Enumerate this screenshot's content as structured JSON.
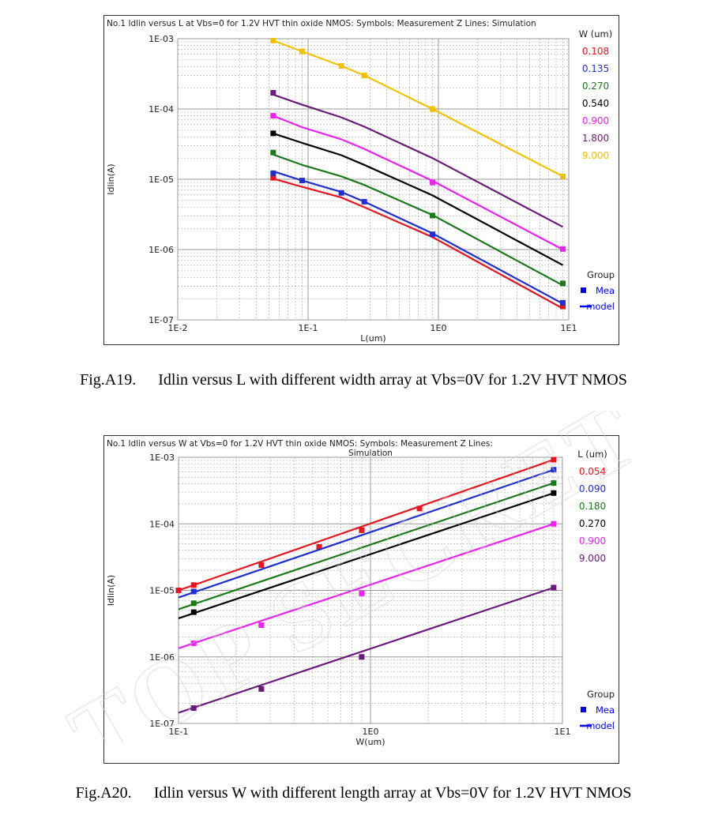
{
  "figures": [
    {
      "caption_number": "Fig.A19.",
      "caption_text": "Idlin versus L with different width array at Vbs=0V for 1.2V HVT NMOS"
    },
    {
      "caption_number": "Fig.A20.",
      "caption_text": "Idlin versus W with different length array at Vbs=0V for 1.2V HVT NMOS"
    }
  ],
  "watermark": "TOP SECRET",
  "chart_data": [
    {
      "type": "line",
      "title": "No.1 Idlin versus L at Vbs=0 for 1.2V HVT thin oxide NMOS: Symbols: Measurement Z Lines: Simulation",
      "xlabel": "L(um)",
      "ylabel": "Idlin(A)",
      "x_scale": "log",
      "y_scale": "log",
      "xlim": [
        0.01,
        10
      ],
      "ylim": [
        1e-07,
        0.001
      ],
      "x_ticks": [
        {
          "v": 0.01,
          "label": "1E-2"
        },
        {
          "v": 0.1,
          "label": "1E-1"
        },
        {
          "v": 1,
          "label": "1E0"
        },
        {
          "v": 10,
          "label": "1E1"
        }
      ],
      "y_ticks": [
        {
          "v": 0.001,
          "label": "1E-03"
        },
        {
          "v": 0.0001,
          "label": "1E-04"
        },
        {
          "v": 1e-05,
          "label": "1E-05"
        },
        {
          "v": 1e-06,
          "label": "1E-06"
        },
        {
          "v": 1e-07,
          "label": "1E-07"
        }
      ],
      "grid": true,
      "legend_title": "W (um)",
      "legend_placement": "right",
      "group_title": "Group",
      "group_items": [
        {
          "label": "Mea",
          "kind": "marker",
          "color": "#0000ff"
        },
        {
          "label": "model",
          "kind": "line",
          "color": "#0000ff"
        }
      ],
      "series": [
        {
          "name": "0.108",
          "color": "#e8141e",
          "points": [
            [
              0.054,
              1.02e-05
            ],
            [
              0.09,
              7.8e-06
            ],
            [
              0.18,
              5.5e-06
            ],
            [
              0.27,
              4e-06
            ],
            [
              0.9,
              1.5e-06
            ],
            [
              9,
              1.45e-07
            ]
          ],
          "markers": [
            [
              0.054,
              1.05e-05
            ],
            [
              9,
              1.55e-07
            ]
          ]
        },
        {
          "name": "0.135",
          "color": "#2030d0",
          "points": [
            [
              0.054,
              1.3e-05
            ],
            [
              0.09,
              9.6e-06
            ],
            [
              0.18,
              6.6e-06
            ],
            [
              0.27,
              4.8e-06
            ],
            [
              0.9,
              1.7e-06
            ],
            [
              9,
              1.7e-07
            ]
          ],
          "markers": [
            [
              0.054,
              1.22e-05
            ],
            [
              0.09,
              9.6e-06
            ],
            [
              0.18,
              6.4e-06
            ],
            [
              0.27,
              4.8e-06
            ],
            [
              0.9,
              1.65e-06
            ],
            [
              9,
              1.75e-07
            ]
          ]
        },
        {
          "name": "0.270",
          "color": "#1a7a1a",
          "points": [
            [
              0.054,
              2.25e-05
            ],
            [
              0.09,
              1.6e-05
            ],
            [
              0.18,
              1.1e-05
            ],
            [
              0.27,
              8.3e-06
            ],
            [
              0.9,
              3.1e-06
            ],
            [
              9,
              3.1e-07
            ]
          ],
          "markers": [
            [
              0.054,
              2.4e-05
            ],
            [
              0.9,
              3.05e-06
            ],
            [
              9,
              3.3e-07
            ]
          ]
        },
        {
          "name": "0.540",
          "color": "#000000",
          "points": [
            [
              0.054,
              4.5e-05
            ],
            [
              0.09,
              3.3e-05
            ],
            [
              0.18,
              2.2e-05
            ],
            [
              0.27,
              1.6e-05
            ],
            [
              0.9,
              5.9e-06
            ],
            [
              9,
              6e-07
            ]
          ],
          "markers": [
            [
              0.054,
              4.5e-05
            ]
          ]
        },
        {
          "name": "0.900",
          "color": "#ee22ee",
          "points": [
            [
              0.054,
              8e-05
            ],
            [
              0.09,
              5.5e-05
            ],
            [
              0.18,
              3.7e-05
            ],
            [
              0.27,
              2.7e-05
            ],
            [
              0.9,
              9.5e-06
            ],
            [
              9,
              1e-06
            ]
          ],
          "markers": [
            [
              0.054,
              8e-05
            ],
            [
              0.9,
              9e-06
            ],
            [
              9,
              1.02e-06
            ]
          ]
        },
        {
          "name": "1.800",
          "color": "#6a1a7a",
          "points": [
            [
              0.054,
              0.00016
            ],
            [
              0.09,
              0.000115
            ],
            [
              0.18,
              7.6e-05
            ],
            [
              0.27,
              5.6e-05
            ],
            [
              0.9,
              2e-05
            ],
            [
              9,
              2.1e-06
            ]
          ],
          "markers": [
            [
              0.054,
              0.00017
            ]
          ]
        },
        {
          "name": "9.000",
          "color": "#f2c200",
          "points": [
            [
              0.054,
              0.00094
            ],
            [
              0.09,
              0.00066
            ],
            [
              0.18,
              0.00041
            ],
            [
              0.27,
              0.0003
            ],
            [
              0.9,
              0.0001
            ],
            [
              9,
              1.1e-05
            ]
          ],
          "markers": [
            [
              0.054,
              0.00094
            ],
            [
              0.09,
              0.00066
            ],
            [
              0.18,
              0.00041
            ],
            [
              0.27,
              0.0003
            ],
            [
              0.9,
              0.0001
            ],
            [
              9,
              1.1e-05
            ]
          ]
        }
      ]
    },
    {
      "type": "line",
      "title": "No.1     Idlin versus W at Vbs=0 for 1.2V HVT thin oxide NMOS: Symbols: Measurement Z Lines:",
      "title_line2": "Simulation",
      "xlabel": "W(um)",
      "ylabel": "Idlin(A)",
      "x_scale": "log",
      "y_scale": "log",
      "xlim": [
        0.1,
        10
      ],
      "ylim": [
        1e-07,
        0.001
      ],
      "x_ticks": [
        {
          "v": 0.1,
          "label": "1E-1"
        },
        {
          "v": 1,
          "label": "1E0"
        },
        {
          "v": 10,
          "label": "1E1"
        }
      ],
      "y_ticks": [
        {
          "v": 0.001,
          "label": "1E-03"
        },
        {
          "v": 0.0001,
          "label": "1E-04"
        },
        {
          "v": 1e-05,
          "label": "1E-05"
        },
        {
          "v": 1e-06,
          "label": "1E-06"
        },
        {
          "v": 1e-07,
          "label": "1E-07"
        }
      ],
      "grid": true,
      "legend_title": "L (um)",
      "legend_placement": "right",
      "group_title": "Group",
      "group_items": [
        {
          "label": "Mea",
          "kind": "marker",
          "color": "#0000ff"
        },
        {
          "label": "model",
          "kind": "line",
          "color": "#0000ff"
        }
      ],
      "series": [
        {
          "name": "0.054",
          "color": "#e8141e",
          "points": [
            [
              0.1,
              1e-05
            ],
            [
              9,
              0.00092
            ]
          ],
          "markers": [
            [
              0.1,
              1e-05
            ],
            [
              0.12,
              1.2e-05
            ],
            [
              0.27,
              2.4e-05
            ],
            [
              0.54,
              4.5e-05
            ],
            [
              0.9,
              8e-05
            ],
            [
              1.8,
              0.00017
            ],
            [
              9,
              0.00092
            ]
          ]
        },
        {
          "name": "0.090",
          "color": "#2030d0",
          "points": [
            [
              0.1,
              7.8e-06
            ],
            [
              9,
              0.00065
            ]
          ],
          "markers": [
            [
              0.12,
              9.6e-06
            ],
            [
              9,
              0.00065
            ]
          ]
        },
        {
          "name": "0.180",
          "color": "#1a7a1a",
          "points": [
            [
              0.1,
              5.2e-06
            ],
            [
              9,
              0.00041
            ]
          ],
          "markers": [
            [
              0.12,
              6.4e-06
            ],
            [
              9,
              0.00041
            ]
          ]
        },
        {
          "name": "0.270",
          "color": "#000000",
          "points": [
            [
              0.1,
              3.8e-06
            ],
            [
              9,
              0.00029
            ]
          ],
          "markers": [
            [
              0.12,
              4.7e-06
            ],
            [
              9,
              0.00029
            ]
          ]
        },
        {
          "name": "0.900",
          "color": "#ee22ee",
          "points": [
            [
              0.1,
              1.35e-06
            ],
            [
              9,
              0.0001
            ]
          ],
          "markers": [
            [
              0.12,
              1.6e-06
            ],
            [
              0.27,
              3e-06
            ],
            [
              0.9,
              9e-06
            ],
            [
              9,
              0.0001
            ]
          ]
        },
        {
          "name": "9.000",
          "color": "#6a1a7a",
          "points": [
            [
              0.1,
              1.45e-07
            ],
            [
              9,
              1.1e-05
            ]
          ],
          "markers": [
            [
              0.12,
              1.7e-07
            ],
            [
              0.27,
              3.3e-07
            ],
            [
              0.9,
              1e-06
            ],
            [
              9,
              1.1e-05
            ]
          ]
        }
      ]
    }
  ]
}
